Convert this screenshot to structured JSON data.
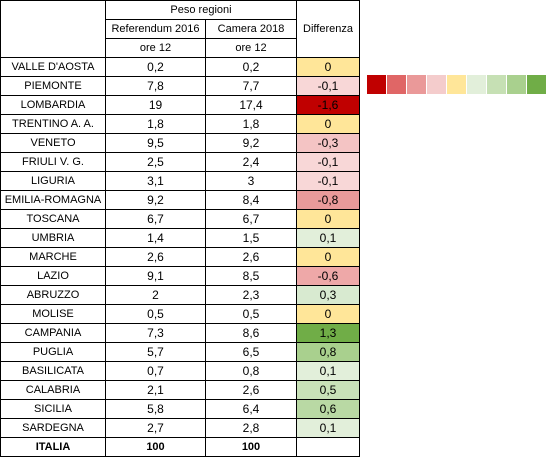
{
  "header": {
    "group_label": "Peso regioni",
    "col1_label": "Referendum 2016",
    "col2_label": "Camera 2018",
    "col1_sub": "ore 12",
    "col2_sub": "ore 12",
    "diff_label": "Differenza"
  },
  "rows": [
    {
      "region": "VALLE D'AOSTA",
      "ref2016": "0,2",
      "cam2018": "0,2",
      "diff": "0",
      "color": "#ffe699"
    },
    {
      "region": "PIEMONTE",
      "ref2016": "7,8",
      "cam2018": "7,7",
      "diff": "-0,1",
      "color": "#f8d7d7"
    },
    {
      "region": "LOMBARDIA",
      "ref2016": "19",
      "cam2018": "17,4",
      "diff": "-1,6",
      "color": "#c00000"
    },
    {
      "region": "TRENTINO A. A.",
      "ref2016": "1,8",
      "cam2018": "1,8",
      "diff": "0",
      "color": "#ffe699"
    },
    {
      "region": "VENETO",
      "ref2016": "9,5",
      "cam2018": "9,2",
      "diff": "-0,3",
      "color": "#f4c4c4"
    },
    {
      "region": "FRIULI V. G.",
      "ref2016": "2,5",
      "cam2018": "2,4",
      "diff": "-0,1",
      "color": "#f8d7d7"
    },
    {
      "region": "LIGURIA",
      "ref2016": "3,1",
      "cam2018": "3",
      "diff": "-0,1",
      "color": "#f8d7d7"
    },
    {
      "region": "EMILIA-ROMAGNA",
      "ref2016": "9,2",
      "cam2018": "8,4",
      "diff": "-0,8",
      "color": "#e99a9a"
    },
    {
      "region": "TOSCANA",
      "ref2016": "6,7",
      "cam2018": "6,7",
      "diff": "0",
      "color": "#ffe699"
    },
    {
      "region": "UMBRIA",
      "ref2016": "1,4",
      "cam2018": "1,5",
      "diff": "0,1",
      "color": "#e2efda"
    },
    {
      "region": "MARCHE",
      "ref2016": "2,6",
      "cam2018": "2,6",
      "diff": "0",
      "color": "#ffe699"
    },
    {
      "region": "LAZIO",
      "ref2016": "9,1",
      "cam2018": "8,5",
      "diff": "-0,6",
      "color": "#eea8a8"
    },
    {
      "region": "ABRUZZO",
      "ref2016": "2",
      "cam2018": "2,3",
      "diff": "0,3",
      "color": "#d8ead0"
    },
    {
      "region": "MOLISE",
      "ref2016": "0,5",
      "cam2018": "0,5",
      "diff": "0",
      "color": "#ffe699"
    },
    {
      "region": "CAMPANIA",
      "ref2016": "7,3",
      "cam2018": "8,6",
      "diff": "1,3",
      "color": "#70ad47"
    },
    {
      "region": "PUGLIA",
      "ref2016": "5,7",
      "cam2018": "6,5",
      "diff": "0,8",
      "color": "#a9d08e"
    },
    {
      "region": "BASILICATA",
      "ref2016": "0,7",
      "cam2018": "0,8",
      "diff": "0,1",
      "color": "#e2efda"
    },
    {
      "region": "CALABRIA",
      "ref2016": "2,1",
      "cam2018": "2,6",
      "diff": "0,5",
      "color": "#c9e2b8"
    },
    {
      "region": "SICILIA",
      "ref2016": "5,8",
      "cam2018": "6,4",
      "diff": "0,6",
      "color": "#b9d9a4"
    },
    {
      "region": "SARDEGNA",
      "ref2016": "2,7",
      "cam2018": "2,8",
      "diff": "0,1",
      "color": "#e2efda"
    }
  ],
  "total": {
    "region": "ITALIA",
    "ref2016": "100",
    "cam2018": "100"
  },
  "legend_colors": [
    "#c00000",
    "#e06666",
    "#ea9999",
    "#f4cccc",
    "#ffe699",
    "#e2efda",
    "#c6e0b4",
    "#a9d08e",
    "#70ad47"
  ]
}
